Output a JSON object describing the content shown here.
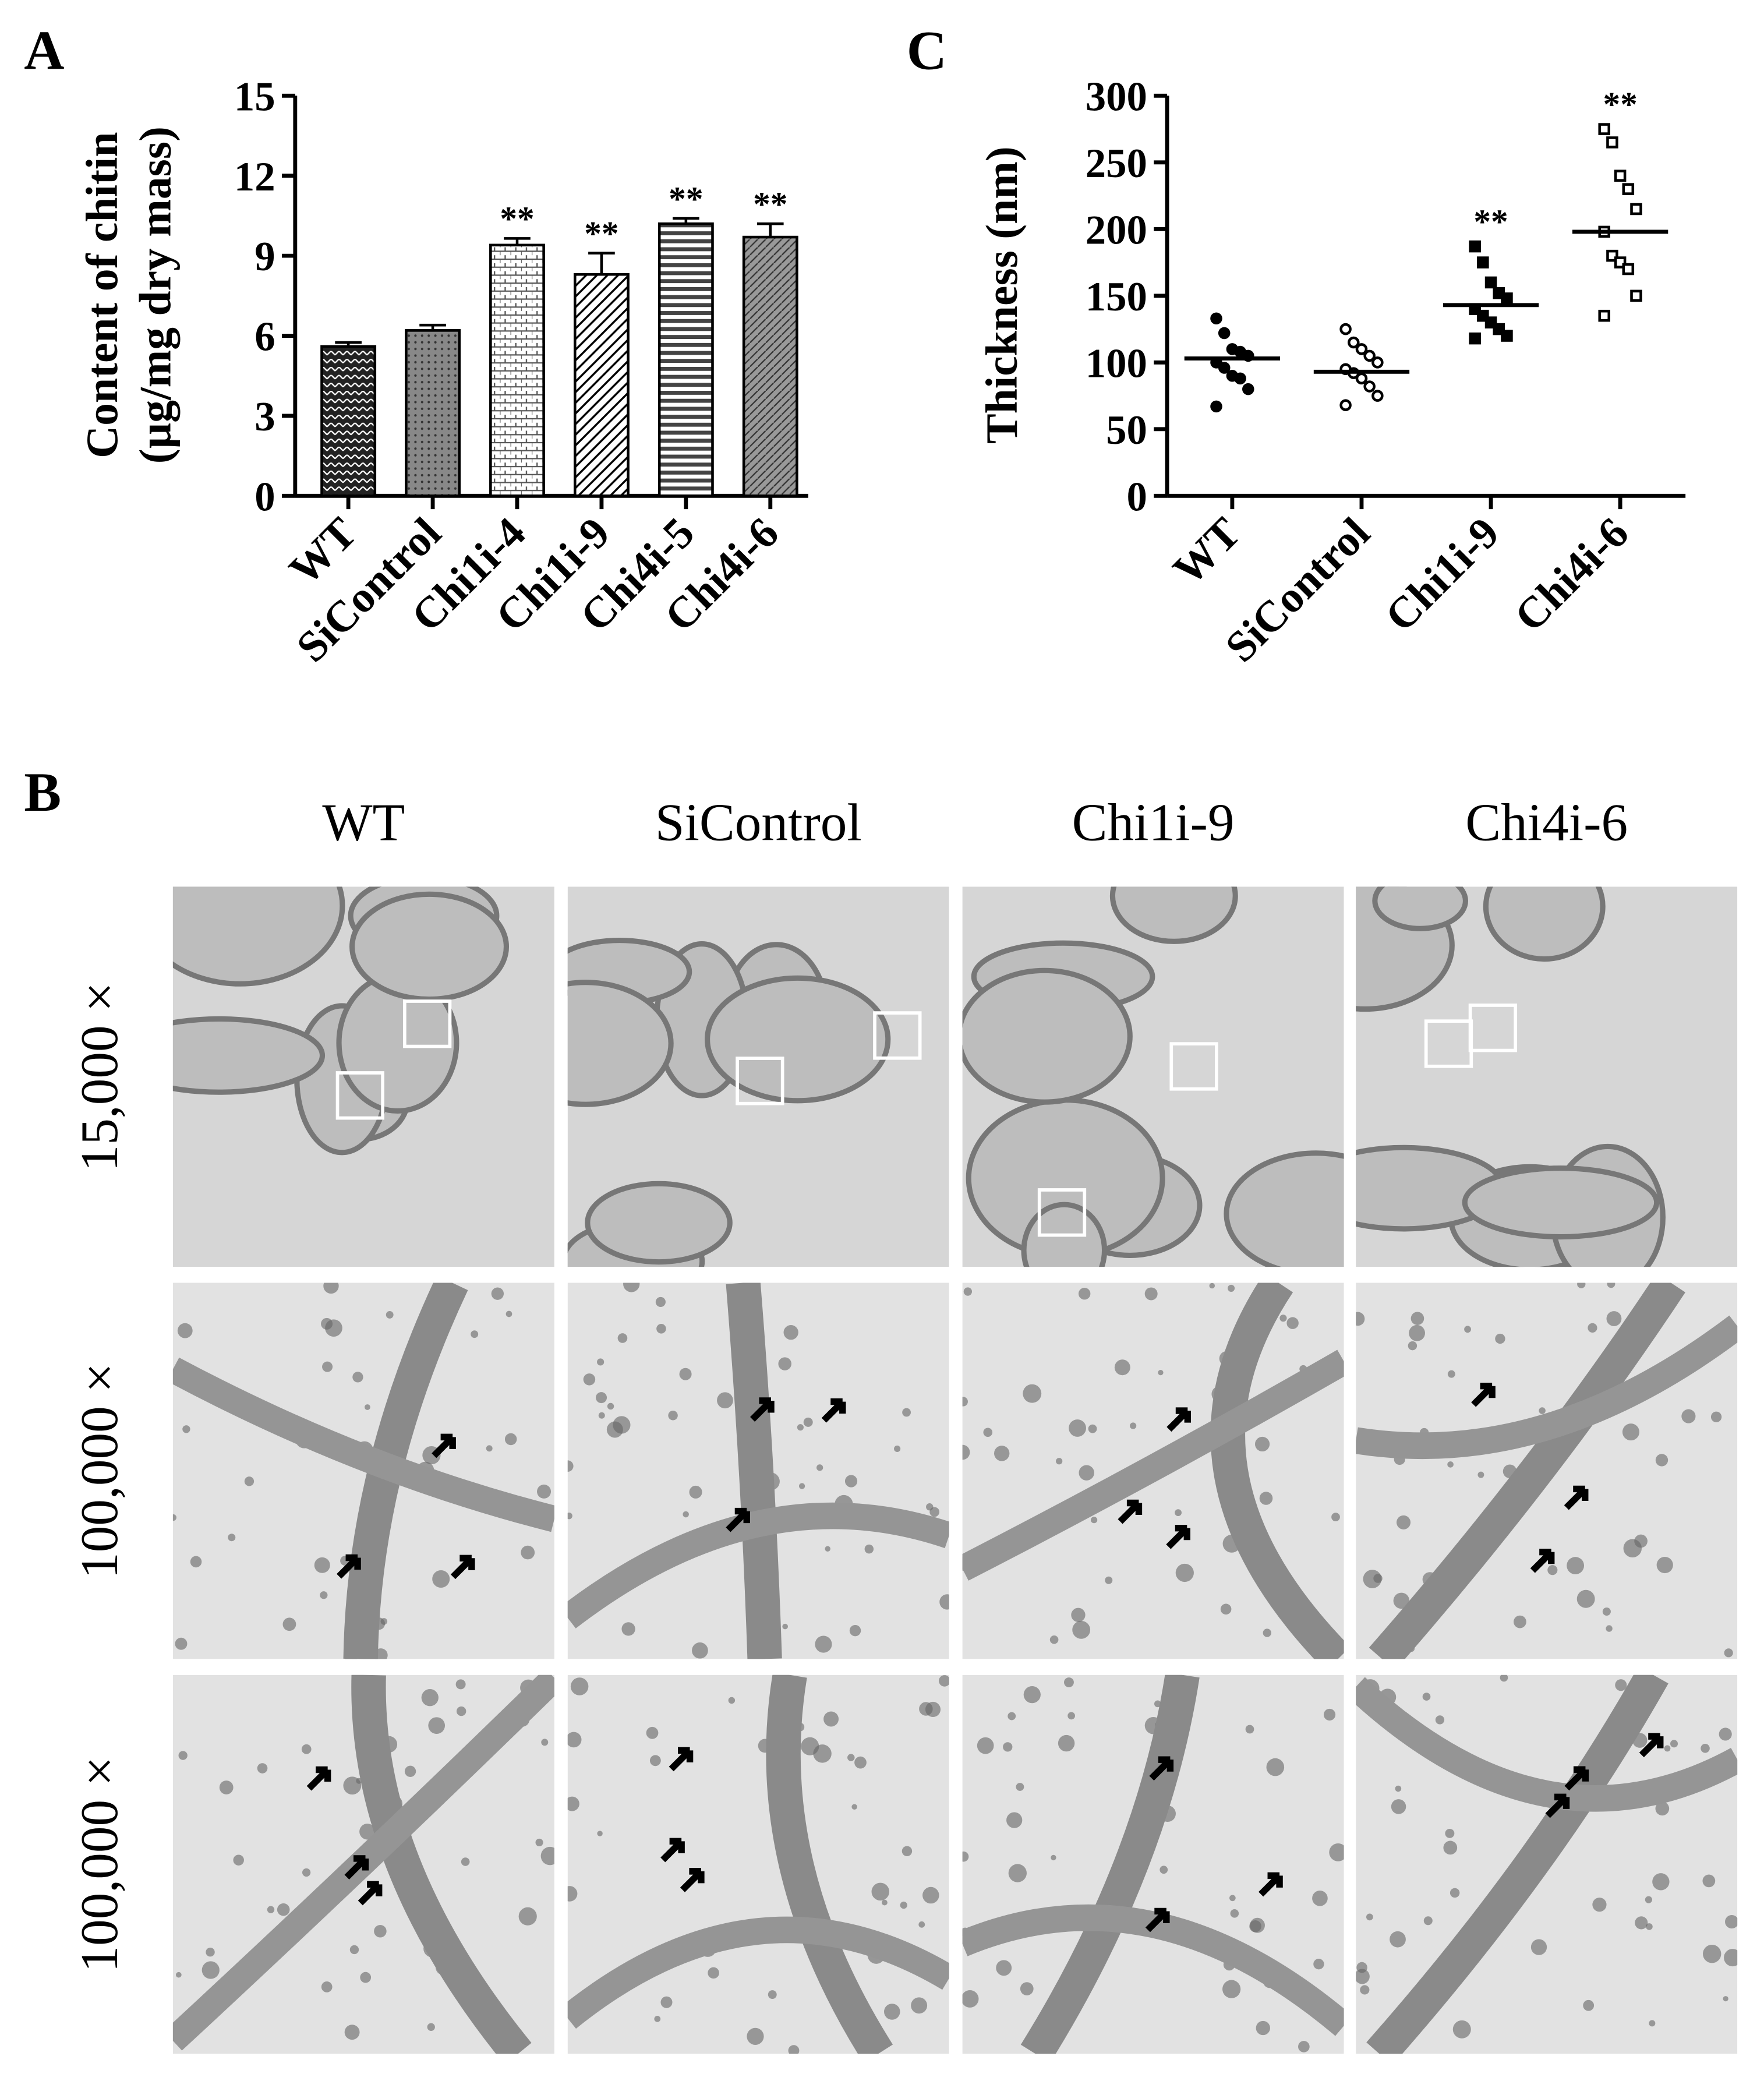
{
  "panel_labels": {
    "a": "A",
    "b": "B",
    "c": "C"
  },
  "charts": [
    {
      "type": "bar",
      "ylabel_lines": [
        "Content of chitin",
        "(µg/mg dry mass)"
      ],
      "categories": [
        "WT",
        "SiControl",
        "Chi1i-4",
        "Chi1i-9",
        "Chi4i-5",
        "Chi4i-6"
      ],
      "values": [
        5.6,
        6.2,
        9.4,
        8.3,
        10.2,
        9.7
      ],
      "errors": [
        0.15,
        0.2,
        0.25,
        0.8,
        0.2,
        0.5
      ],
      "annotations": [
        null,
        null,
        "**",
        "**",
        "**",
        "**"
      ],
      "ylim": [
        0,
        15
      ],
      "yticks": [
        0,
        3,
        6,
        9,
        12,
        15
      ],
      "color": "#000000"
    },
    {
      "type": "dot",
      "ylabel": "Thickness (nm)",
      "categories": [
        "WT",
        "SiControl",
        "Chi1i-9",
        "Chi4i-6"
      ],
      "points": [
        [
          133,
          122,
          110,
          108,
          105,
          100,
          96,
          90,
          88,
          80,
          67
        ],
        [
          125,
          115,
          110,
          105,
          100,
          95,
          92,
          88,
          82,
          75,
          68
        ],
        [
          187,
          175,
          160,
          152,
          148,
          140,
          135,
          130,
          125,
          120,
          118
        ],
        [
          275,
          265,
          240,
          230,
          215,
          198,
          180,
          175,
          170,
          150,
          135
        ]
      ],
      "means": [
        103,
        93,
        143,
        198
      ],
      "markers": [
        "filled-circle",
        "open-circle",
        "filled-square",
        "open-square"
      ],
      "annotations": [
        null,
        null,
        "**",
        "**"
      ],
      "ylim": [
        0,
        300
      ],
      "yticks": [
        0,
        50,
        100,
        150,
        200,
        250,
        300
      ],
      "color": "#000000"
    }
  ],
  "micrographs": {
    "columns": [
      "WT",
      "SiControl",
      "Chi1i-9",
      "Chi4i-6"
    ],
    "rows": [
      "15,000 ×",
      "100,000 ×",
      "100,000 ×"
    ]
  }
}
